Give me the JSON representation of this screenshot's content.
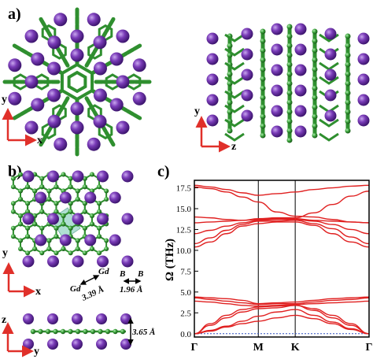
{
  "panels": {
    "a": "a)",
    "b": "b)",
    "c": "c)"
  },
  "axes_a_left": {
    "vertical": "y",
    "horizontal": "x"
  },
  "axes_a_right": {
    "vertical": "y",
    "horizontal": "z"
  },
  "axes_b_top": {
    "vertical": "y",
    "horizontal": "x"
  },
  "axes_b_bottom": {
    "vertical": "z",
    "horizontal": "y"
  },
  "annotations": {
    "gd_left": "Gd",
    "gd_right": "Gd",
    "b_left": "B",
    "b_right": "B",
    "dist_gd": "3.39 Å",
    "dist_b": "1.96 Å",
    "dist_z": "3.65 Å"
  },
  "colors": {
    "gd_atom": "#6a2fa6",
    "b_atom": "#3aa13a",
    "bond": "#2f8f2f",
    "unit_cell": "#8fd1c0",
    "axis_arrow": "#e0302a",
    "phonon_line": "#e02020",
    "zero_line": "#3050c0"
  },
  "chart_data": {
    "type": "line",
    "xlabel": "",
    "ylabel": "Ω (THz)",
    "ylim": [
      -0.4,
      18.4
    ],
    "yticks": [
      "0.0",
      "2.5",
      "5.0",
      "7.5",
      "10.0",
      "12.5",
      "15.0",
      "17.5"
    ],
    "ytick_values": [
      0,
      2.5,
      5,
      7.5,
      10,
      12.5,
      15,
      17.5
    ],
    "kpoints": [
      "Γ",
      "M",
      "K",
      "Γ"
    ],
    "kpoint_positions": [
      0,
      1,
      1.577,
      2.732
    ],
    "x": [
      0,
      0.25,
      0.5,
      0.75,
      1,
      1.29,
      1.577,
      1.87,
      2.16,
      2.45,
      2.732
    ],
    "series": [
      {
        "values": [
          0,
          1.2,
          2.2,
          2.9,
          3.2,
          3.3,
          3.4,
          3.0,
          2.2,
          1.2,
          0
        ]
      },
      {
        "values": [
          0,
          1.0,
          1.9,
          2.6,
          3.0,
          3.1,
          3.4,
          2.8,
          1.9,
          1.0,
          0
        ]
      },
      {
        "values": [
          0,
          0.4,
          0.9,
          1.5,
          2.1,
          2.6,
          2.9,
          2.2,
          1.4,
          0.6,
          0
        ]
      },
      {
        "values": [
          0,
          0.3,
          0.8,
          1.2,
          1.5,
          1.9,
          2.2,
          1.8,
          1.2,
          0.5,
          0
        ]
      },
      {
        "values": [
          3.9,
          3.8,
          3.6,
          3.4,
          3.3,
          3.4,
          3.5,
          3.6,
          3.7,
          3.8,
          3.9
        ]
      },
      {
        "values": [
          4.3,
          4.1,
          3.9,
          3.7,
          3.5,
          3.6,
          3.6,
          3.8,
          4.0,
          4.1,
          4.3
        ]
      },
      {
        "values": [
          4.4,
          4.3,
          4.2,
          4.0,
          3.6,
          3.7,
          3.8,
          4.0,
          4.2,
          4.3,
          4.4
        ]
      },
      {
        "values": [
          10.4,
          11.0,
          12.0,
          12.9,
          13.2,
          13.4,
          13.4,
          13.0,
          12.0,
          11.0,
          10.4
        ]
      },
      {
        "values": [
          10.8,
          11.5,
          12.4,
          13.1,
          13.5,
          13.5,
          13.6,
          13.2,
          12.6,
          11.6,
          10.8
        ]
      },
      {
        "values": [
          12.0,
          12.4,
          12.9,
          13.3,
          13.6,
          13.7,
          13.7,
          13.5,
          13.1,
          12.5,
          12.0
        ]
      },
      {
        "values": [
          13.3,
          13.4,
          13.5,
          13.6,
          13.7,
          13.8,
          13.8,
          13.6,
          13.5,
          13.4,
          13.3
        ]
      },
      {
        "values": [
          14.0,
          13.9,
          13.7,
          13.6,
          13.8,
          13.9,
          13.9,
          14.5,
          15.5,
          16.5,
          17.1
        ]
      },
      {
        "values": [
          17.6,
          17.4,
          17.0,
          16.4,
          15.8,
          14.6,
          14.1,
          14.0,
          13.7,
          13.4,
          13.3
        ]
      },
      {
        "values": [
          17.8,
          17.6,
          17.3,
          16.9,
          16.6,
          16.8,
          17.0,
          17.3,
          17.5,
          17.7,
          17.8
        ]
      }
    ]
  }
}
